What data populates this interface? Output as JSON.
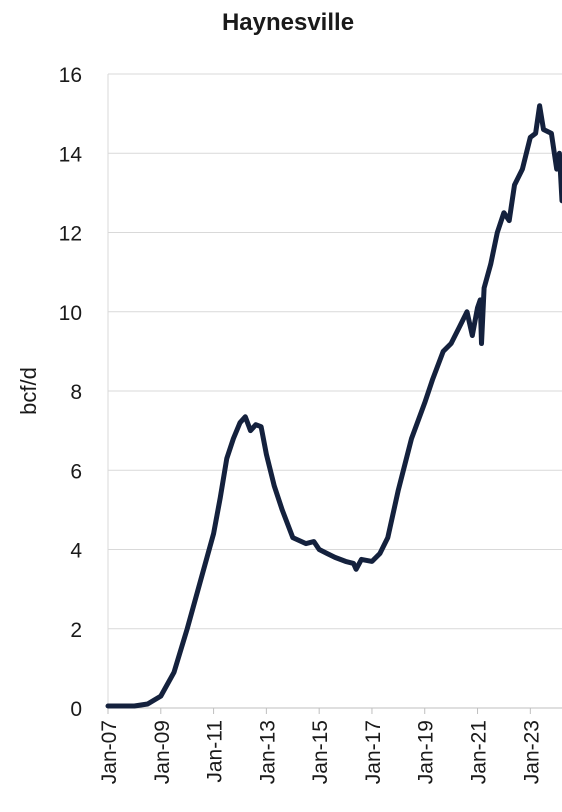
{
  "chart_data": {
    "type": "line",
    "title": "Haynesville",
    "y_label": "bcf/d",
    "x": [
      2007.0,
      2008.0,
      2008.5,
      2009.0,
      2009.5,
      2010.0,
      2010.5,
      2011.0,
      2011.25,
      2011.5,
      2011.75,
      2012.0,
      2012.2,
      2012.4,
      2012.6,
      2012.8,
      2013.0,
      2013.3,
      2013.6,
      2014.0,
      2014.5,
      2014.8,
      2015.0,
      2015.3,
      2015.6,
      2016.0,
      2016.3,
      2016.4,
      2016.6,
      2017.0,
      2017.3,
      2017.6,
      2018.0,
      2018.5,
      2019.0,
      2019.3,
      2019.7,
      2020.0,
      2020.3,
      2020.6,
      2020.8,
      2021.0,
      2021.1,
      2021.15,
      2021.25,
      2021.5,
      2021.75,
      2022.0,
      2022.2,
      2022.4,
      2022.7,
      2023.0,
      2023.2,
      2023.35,
      2023.5,
      2023.8,
      2024.0,
      2024.1,
      2024.2
    ],
    "series": [
      {
        "name": "Haynesville",
        "color": "#14213d",
        "values": [
          0.05,
          0.05,
          0.1,
          0.3,
          0.9,
          2.0,
          3.2,
          4.4,
          5.3,
          6.3,
          6.8,
          7.2,
          7.35,
          7.0,
          7.15,
          7.1,
          6.4,
          5.6,
          5.0,
          4.3,
          4.15,
          4.2,
          4.0,
          3.9,
          3.8,
          3.7,
          3.65,
          3.5,
          3.75,
          3.7,
          3.9,
          4.3,
          5.5,
          6.8,
          7.7,
          8.3,
          9.0,
          9.2,
          9.6,
          10.0,
          9.4,
          10.1,
          10.3,
          9.2,
          10.6,
          11.2,
          12.0,
          12.5,
          12.3,
          13.2,
          13.6,
          14.4,
          14.5,
          15.2,
          14.6,
          14.5,
          13.6,
          14.0,
          12.8
        ]
      }
    ],
    "xlim": [
      2007,
      2024.2
    ],
    "xticks": [
      {
        "value": 2007,
        "label": "Jan-07"
      },
      {
        "value": 2009,
        "label": "Jan-09"
      },
      {
        "value": 2011,
        "label": "Jan-11"
      },
      {
        "value": 2013,
        "label": "Jan-13"
      },
      {
        "value": 2015,
        "label": "Jan-15"
      },
      {
        "value": 2017,
        "label": "Jan-17"
      },
      {
        "value": 2019,
        "label": "Jan-19"
      },
      {
        "value": 2021,
        "label": "Jan-21"
      },
      {
        "value": 2023,
        "label": "Jan-23"
      }
    ],
    "ylim": [
      0,
      16
    ],
    "yticks": [
      0,
      2,
      4,
      6,
      8,
      10,
      12,
      14,
      16
    ],
    "grid": true
  }
}
